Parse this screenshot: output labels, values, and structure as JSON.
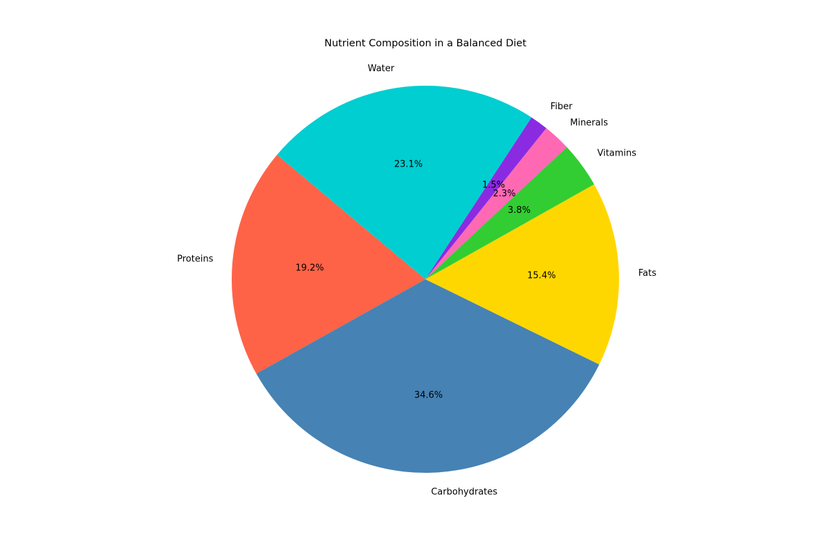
{
  "chart_data": {
    "type": "pie",
    "title": "Nutrient Composition in a Balanced Diet",
    "slices": [
      {
        "label": "Proteins",
        "value": 19.2,
        "pct_label": "19.2%",
        "color": "#FF6347"
      },
      {
        "label": "Carbohydrates",
        "value": 34.6,
        "pct_label": "34.6%",
        "color": "#4682B4"
      },
      {
        "label": "Fats",
        "value": 15.4,
        "pct_label": "15.4%",
        "color": "#FFD700"
      },
      {
        "label": "Vitamins",
        "value": 3.8,
        "pct_label": "3.8%",
        "color": "#32CD32"
      },
      {
        "label": "Minerals",
        "value": 2.3,
        "pct_label": "2.3%",
        "color": "#FF69B4"
      },
      {
        "label": "Fiber",
        "value": 1.5,
        "pct_label": "1.5%",
        "color": "#8A2BE2"
      },
      {
        "label": "Water",
        "value": 23.1,
        "pct_label": "23.1%",
        "color": "#00CED1"
      }
    ],
    "start_angle": 140,
    "direction": "counterclockwise",
    "legend": "none"
  }
}
